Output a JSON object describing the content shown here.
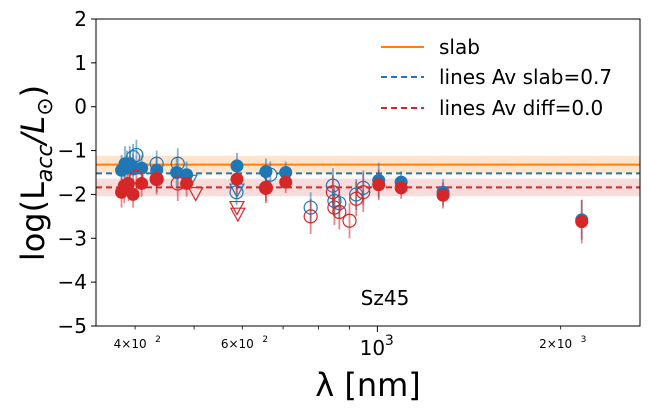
{
  "chart_data": {
    "type": "scatter",
    "title": "",
    "xlabel": "λ [nm]",
    "ylabel": "log(L_acc/L_⊙)",
    "annotation": "Sz45",
    "xscale": "log",
    "xlim": [
      345,
      2700
    ],
    "ylim": [
      -5,
      2
    ],
    "grid": false,
    "legend_position": "top-right",
    "x_major_ticks": [
      {
        "value": 1000,
        "base": "10",
        "exp": "3"
      }
    ],
    "x_minor_ticks": [
      {
        "value": 400,
        "coef": "4",
        "exp": "2"
      },
      {
        "value": 600,
        "coef": "6",
        "exp": "2"
      },
      {
        "value": 2000,
        "coef": "2",
        "exp": "3"
      }
    ],
    "x_minor_unlabeled": [
      500,
      700,
      800,
      900
    ],
    "y_ticks": [
      2,
      1,
      0,
      -1,
      -2,
      -3,
      -4,
      -5
    ],
    "hlines": [
      {
        "name": "slab",
        "y": -1.32,
        "band": [
          -1.12,
          -1.52
        ],
        "color": "#ff7f0e",
        "style": "solid",
        "band_opacity": 0.22
      },
      {
        "name": "lines Av slab=0.7",
        "y": -1.52,
        "color": "#1f77b4",
        "style": "dashed"
      },
      {
        "name": "lines Av diff=0.0",
        "y": -1.84,
        "band": [
          -1.64,
          -2.04
        ],
        "color": "#d62728",
        "style": "dashed",
        "band_opacity": 0.16
      }
    ],
    "colors": {
      "blue": "#1f77b4",
      "red": "#d62728"
    },
    "series": [
      {
        "color": "#1f77b4",
        "marker": "filled",
        "points": [
          {
            "x": 380,
            "y": -1.45,
            "err": 0.35
          },
          {
            "x": 385,
            "y": -1.3,
            "err": 0.4
          },
          {
            "x": 388,
            "y": -1.35,
            "err": 0.35
          },
          {
            "x": 392,
            "y": -1.3,
            "err": 0.4
          },
          {
            "x": 397,
            "y": -1.42,
            "err": 0.35
          },
          {
            "x": 410,
            "y": -1.4,
            "err": 0.3
          },
          {
            "x": 434,
            "y": -1.45,
            "err": 0.3
          },
          {
            "x": 468,
            "y": -1.5,
            "err": 0.35
          },
          {
            "x": 486,
            "y": -1.55,
            "err": 0.3
          },
          {
            "x": 588,
            "y": -1.35,
            "err": 0.3
          },
          {
            "x": 656,
            "y": -1.48,
            "err": 0.3
          },
          {
            "x": 707,
            "y": -1.5,
            "err": 0.25
          },
          {
            "x": 1005,
            "y": -1.68,
            "err": 0.4
          },
          {
            "x": 1094,
            "y": -1.72,
            "err": 0.25
          },
          {
            "x": 1282,
            "y": -1.95,
            "err": 0.3
          },
          {
            "x": 2166,
            "y": -2.58,
            "err": 0.45
          }
        ]
      },
      {
        "color": "#1f77b4",
        "marker": "open",
        "points": [
          {
            "x": 397,
            "y": -1.15,
            "err": 0.3
          },
          {
            "x": 402,
            "y": -1.1,
            "err": 0.35
          },
          {
            "x": 434,
            "y": -1.3,
            "err": 0.3
          },
          {
            "x": 470,
            "y": -1.3,
            "err": 0.35
          },
          {
            "x": 587,
            "y": -1.95,
            "err": 0.3
          },
          {
            "x": 667,
            "y": -1.55,
            "err": 0.3
          },
          {
            "x": 777,
            "y": -2.3,
            "err": 0.35
          },
          {
            "x": 845,
            "y": -1.8,
            "err": 0.4
          },
          {
            "x": 850,
            "y": -2.15,
            "err": 0.35
          },
          {
            "x": 866,
            "y": -2.2,
            "err": 0.35
          },
          {
            "x": 923,
            "y": -2.0,
            "err": 0.35
          },
          {
            "x": 948,
            "y": -1.85,
            "err": 0.4
          }
        ]
      },
      {
        "color": "#1f77b4",
        "marker": "triangle-down",
        "points": [
          {
            "x": 492,
            "y": -1.7
          },
          {
            "x": 588,
            "y": -1.9
          }
        ]
      },
      {
        "color": "#d62728",
        "marker": "filled",
        "points": [
          {
            "x": 380,
            "y": -1.95,
            "err": 0.35
          },
          {
            "x": 384,
            "y": -1.8,
            "err": 0.4
          },
          {
            "x": 390,
            "y": -1.75,
            "err": 0.4
          },
          {
            "x": 397,
            "y": -2.0,
            "err": 0.3
          },
          {
            "x": 410,
            "y": -1.75,
            "err": 0.3
          },
          {
            "x": 434,
            "y": -1.65,
            "err": 0.3
          },
          {
            "x": 486,
            "y": -1.75,
            "err": 0.3
          },
          {
            "x": 588,
            "y": -1.65,
            "err": 0.35
          },
          {
            "x": 656,
            "y": -1.85,
            "err": 0.3
          },
          {
            "x": 707,
            "y": -1.72,
            "err": 0.25
          },
          {
            "x": 1005,
            "y": -1.78,
            "err": 0.35
          },
          {
            "x": 1094,
            "y": -1.85,
            "err": 0.25
          },
          {
            "x": 1282,
            "y": -2.02,
            "err": 0.3
          },
          {
            "x": 2166,
            "y": -2.62,
            "err": 0.5
          }
        ]
      },
      {
        "color": "#d62728",
        "marker": "open",
        "points": [
          {
            "x": 402,
            "y": -1.6,
            "err": 0.35
          },
          {
            "x": 434,
            "y": -1.65,
            "err": 0.35
          },
          {
            "x": 470,
            "y": -1.75,
            "err": 0.4
          },
          {
            "x": 656,
            "y": -1.85,
            "err": 0.35
          },
          {
            "x": 777,
            "y": -2.5,
            "err": 0.4
          },
          {
            "x": 845,
            "y": -1.95,
            "err": 0.4
          },
          {
            "x": 850,
            "y": -2.3,
            "err": 0.4
          },
          {
            "x": 866,
            "y": -2.4,
            "err": 0.4
          },
          {
            "x": 900,
            "y": -2.6,
            "err": 0.4
          },
          {
            "x": 923,
            "y": -2.1,
            "err": 0.4
          },
          {
            "x": 948,
            "y": -1.95,
            "err": 0.45
          }
        ]
      },
      {
        "color": "#d62728",
        "marker": "triangle-down",
        "points": [
          {
            "x": 503,
            "y": -1.98
          },
          {
            "x": 588,
            "y": -2.3
          },
          {
            "x": 590,
            "y": -2.45
          }
        ]
      }
    ]
  }
}
